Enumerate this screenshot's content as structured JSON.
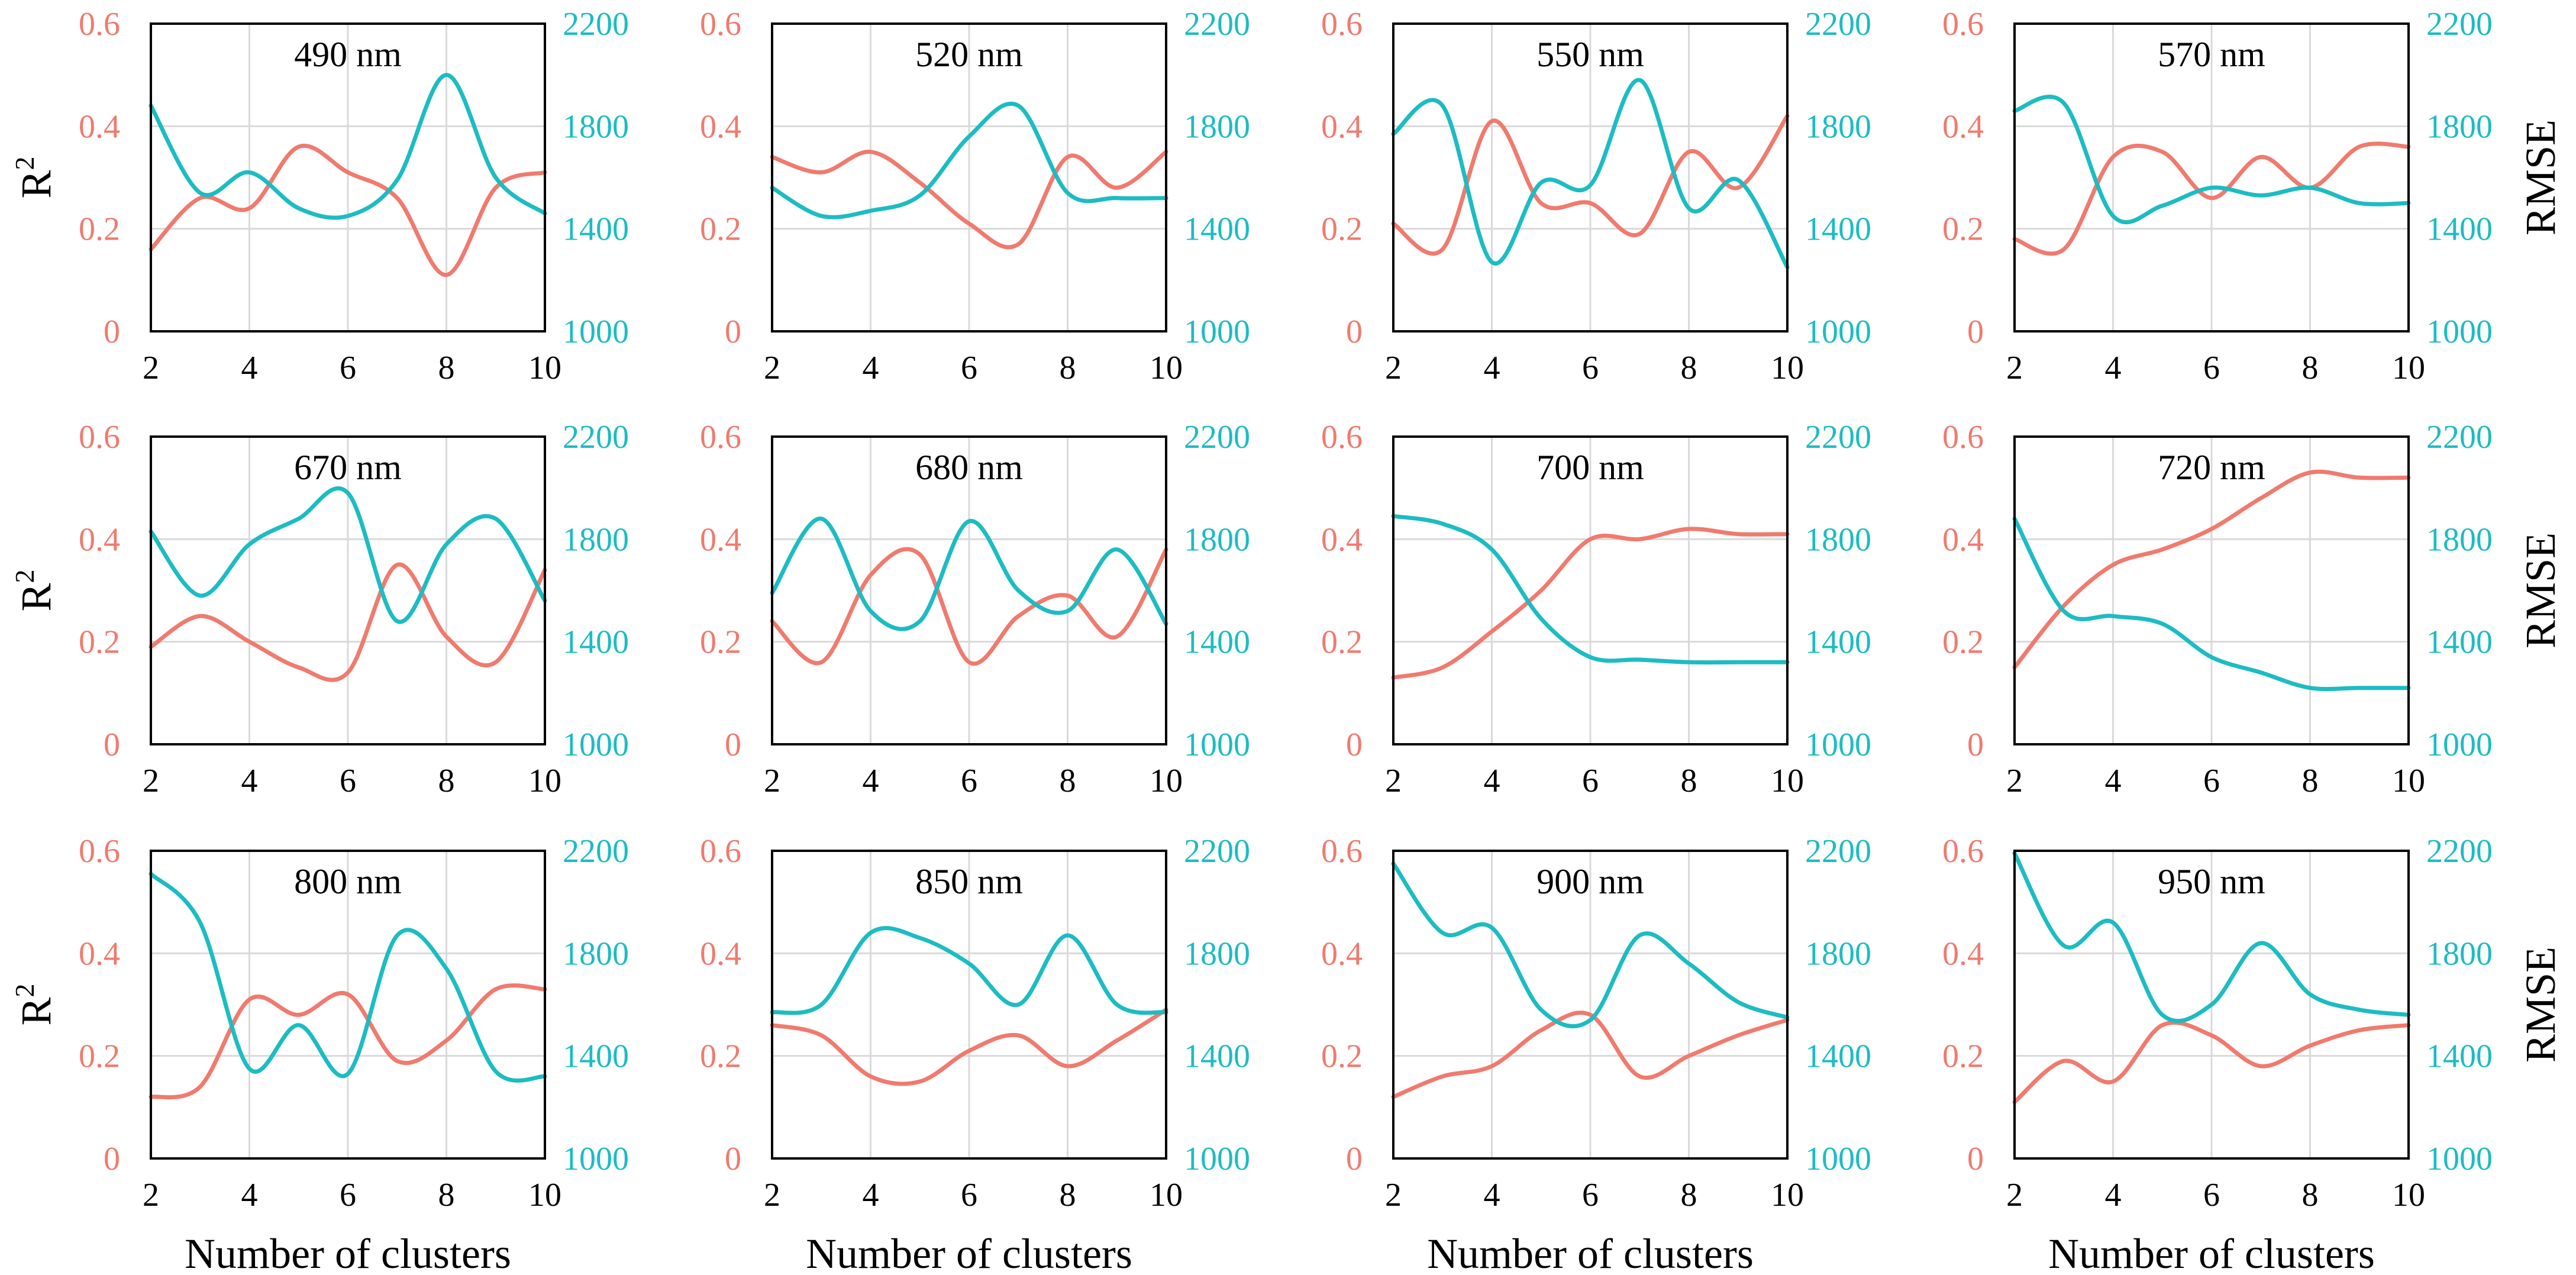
{
  "figure": {
    "colors": {
      "r2": "#f07a6e",
      "rmse": "#1cbcc2",
      "grid": "#d9d9d9",
      "frame": "#000000"
    },
    "left_axis_label": "R",
    "left_axis_label_sup": "2",
    "right_axis_label": "RMSE",
    "x_axis_label": "Number of clusters"
  },
  "chart_data": [
    {
      "type": "line",
      "title": "490 nm",
      "x": [
        2,
        3,
        4,
        5,
        6,
        7,
        8,
        9,
        10
      ],
      "xlim": [
        2,
        10
      ],
      "ylim_left": [
        0,
        0.6
      ],
      "ylim_right": [
        1000,
        2200
      ],
      "grid": true,
      "series": [
        {
          "axis": "left",
          "color": "#f07a6e",
          "values": [
            0.16,
            0.26,
            0.24,
            0.36,
            0.31,
            0.26,
            0.11,
            0.28,
            0.31
          ]
        },
        {
          "axis": "right",
          "color": "#1cbcc2",
          "values": [
            1880,
            1540,
            1620,
            1480,
            1450,
            1590,
            2000,
            1600,
            1460
          ]
        }
      ]
    },
    {
      "type": "line",
      "title": "520 nm",
      "x": [
        2,
        3,
        4,
        5,
        6,
        7,
        8,
        9,
        10
      ],
      "xlim": [
        2,
        10
      ],
      "ylim_left": [
        0,
        0.6
      ],
      "ylim_right": [
        1000,
        2200
      ],
      "grid": true,
      "series": [
        {
          "axis": "left",
          "color": "#f07a6e",
          "values": [
            0.34,
            0.31,
            0.35,
            0.29,
            0.21,
            0.17,
            0.34,
            0.28,
            0.35
          ]
        },
        {
          "axis": "right",
          "color": "#1cbcc2",
          "values": [
            1560,
            1450,
            1470,
            1530,
            1760,
            1880,
            1540,
            1520,
            1520
          ]
        }
      ]
    },
    {
      "type": "line",
      "title": "550 nm",
      "x": [
        2,
        3,
        4,
        5,
        6,
        7,
        8,
        9,
        10
      ],
      "xlim": [
        2,
        10
      ],
      "ylim_left": [
        0,
        0.6
      ],
      "ylim_right": [
        1000,
        2200
      ],
      "grid": true,
      "series": [
        {
          "axis": "left",
          "color": "#f07a6e",
          "values": [
            0.21,
            0.16,
            0.41,
            0.25,
            0.25,
            0.19,
            0.35,
            0.28,
            0.42
          ]
        },
        {
          "axis": "right",
          "color": "#1cbcc2",
          "values": [
            1770,
            1880,
            1270,
            1580,
            1570,
            1980,
            1480,
            1590,
            1250
          ]
        }
      ]
    },
    {
      "type": "line",
      "title": "570 nm",
      "x": [
        2,
        3,
        4,
        5,
        6,
        7,
        8,
        9,
        10
      ],
      "xlim": [
        2,
        10
      ],
      "ylim_left": [
        0,
        0.6
      ],
      "ylim_right": [
        1000,
        2200
      ],
      "grid": true,
      "series": [
        {
          "axis": "left",
          "color": "#f07a6e",
          "values": [
            0.18,
            0.16,
            0.34,
            0.35,
            0.26,
            0.34,
            0.28,
            0.36,
            0.36
          ]
        },
        {
          "axis": "right",
          "color": "#1cbcc2",
          "values": [
            1860,
            1890,
            1450,
            1490,
            1560,
            1530,
            1560,
            1500,
            1500
          ]
        }
      ]
    },
    {
      "type": "line",
      "title": "670 nm",
      "x": [
        2,
        3,
        4,
        5,
        6,
        7,
        8,
        9,
        10
      ],
      "xlim": [
        2,
        10
      ],
      "ylim_left": [
        0,
        0.6
      ],
      "ylim_right": [
        1000,
        2200
      ],
      "grid": true,
      "series": [
        {
          "axis": "left",
          "color": "#f07a6e",
          "values": [
            0.19,
            0.25,
            0.2,
            0.15,
            0.14,
            0.35,
            0.21,
            0.16,
            0.34
          ]
        },
        {
          "axis": "right",
          "color": "#1cbcc2",
          "values": [
            1830,
            1580,
            1780,
            1880,
            1980,
            1480,
            1780,
            1880,
            1560
          ]
        }
      ]
    },
    {
      "type": "line",
      "title": "680 nm",
      "x": [
        2,
        3,
        4,
        5,
        6,
        7,
        8,
        9,
        10
      ],
      "xlim": [
        2,
        10
      ],
      "ylim_left": [
        0,
        0.6
      ],
      "ylim_right": [
        1000,
        2200
      ],
      "grid": true,
      "series": [
        {
          "axis": "left",
          "color": "#f07a6e",
          "values": [
            0.24,
            0.16,
            0.33,
            0.37,
            0.16,
            0.25,
            0.29,
            0.21,
            0.38
          ]
        },
        {
          "axis": "right",
          "color": "#1cbcc2",
          "values": [
            1590,
            1880,
            1520,
            1480,
            1870,
            1600,
            1520,
            1760,
            1470
          ]
        }
      ]
    },
    {
      "type": "line",
      "title": "700 nm",
      "x": [
        2,
        3,
        4,
        5,
        6,
        7,
        8,
        9,
        10
      ],
      "xlim": [
        2,
        10
      ],
      "ylim_left": [
        0,
        0.6
      ],
      "ylim_right": [
        1000,
        2200
      ],
      "grid": true,
      "series": [
        {
          "axis": "left",
          "color": "#f07a6e",
          "values": [
            0.13,
            0.15,
            0.22,
            0.3,
            0.4,
            0.4,
            0.42,
            0.41,
            0.41
          ]
        },
        {
          "axis": "right",
          "color": "#1cbcc2",
          "values": [
            1890,
            1860,
            1760,
            1490,
            1340,
            1330,
            1320,
            1320,
            1320
          ]
        }
      ]
    },
    {
      "type": "line",
      "title": "720 nm",
      "x": [
        2,
        3,
        4,
        5,
        6,
        7,
        8,
        9,
        10
      ],
      "xlim": [
        2,
        10
      ],
      "ylim_left": [
        0,
        0.6
      ],
      "ylim_right": [
        1000,
        2200
      ],
      "grid": true,
      "series": [
        {
          "axis": "left",
          "color": "#f07a6e",
          "values": [
            0.15,
            0.27,
            0.35,
            0.38,
            0.42,
            0.48,
            0.53,
            0.52,
            0.52
          ]
        },
        {
          "axis": "right",
          "color": "#1cbcc2",
          "values": [
            1880,
            1520,
            1500,
            1470,
            1340,
            1280,
            1220,
            1220,
            1220
          ]
        }
      ]
    },
    {
      "type": "line",
      "title": "800 nm",
      "x": [
        2,
        3,
        4,
        5,
        6,
        7,
        8,
        9,
        10
      ],
      "xlim": [
        2,
        10
      ],
      "ylim_left": [
        0,
        0.6
      ],
      "ylim_right": [
        1000,
        2200
      ],
      "grid": true,
      "series": [
        {
          "axis": "left",
          "color": "#f07a6e",
          "values": [
            0.12,
            0.14,
            0.31,
            0.28,
            0.32,
            0.19,
            0.23,
            0.33,
            0.33
          ]
        },
        {
          "axis": "right",
          "color": "#1cbcc2",
          "values": [
            2110,
            1920,
            1350,
            1520,
            1330,
            1870,
            1740,
            1340,
            1320
          ]
        }
      ]
    },
    {
      "type": "line",
      "title": "850 nm",
      "x": [
        2,
        3,
        4,
        5,
        6,
        7,
        8,
        9,
        10
      ],
      "xlim": [
        2,
        10
      ],
      "ylim_left": [
        0,
        0.6
      ],
      "ylim_right": [
        1000,
        2200
      ],
      "grid": true,
      "series": [
        {
          "axis": "left",
          "color": "#f07a6e",
          "values": [
            0.26,
            0.24,
            0.16,
            0.15,
            0.21,
            0.24,
            0.18,
            0.23,
            0.29
          ]
        },
        {
          "axis": "right",
          "color": "#1cbcc2",
          "values": [
            1570,
            1600,
            1880,
            1860,
            1760,
            1600,
            1870,
            1600,
            1570
          ]
        }
      ]
    },
    {
      "type": "line",
      "title": "900 nm",
      "x": [
        2,
        3,
        4,
        5,
        6,
        7,
        8,
        9,
        10
      ],
      "xlim": [
        2,
        10
      ],
      "ylim_left": [
        0,
        0.6
      ],
      "ylim_right": [
        1000,
        2200
      ],
      "grid": true,
      "series": [
        {
          "axis": "left",
          "color": "#f07a6e",
          "values": [
            0.12,
            0.16,
            0.18,
            0.25,
            0.28,
            0.16,
            0.2,
            0.24,
            0.27
          ]
        },
        {
          "axis": "right",
          "color": "#1cbcc2",
          "values": [
            2150,
            1880,
            1900,
            1580,
            1540,
            1870,
            1760,
            1610,
            1550
          ]
        }
      ]
    },
    {
      "type": "line",
      "title": "950 nm",
      "x": [
        2,
        3,
        4,
        5,
        6,
        7,
        8,
        9,
        10
      ],
      "xlim": [
        2,
        10
      ],
      "ylim_left": [
        0,
        0.6
      ],
      "ylim_right": [
        1000,
        2200
      ],
      "grid": true,
      "series": [
        {
          "axis": "left",
          "color": "#f07a6e",
          "values": [
            0.11,
            0.19,
            0.15,
            0.26,
            0.24,
            0.18,
            0.22,
            0.25,
            0.26
          ]
        },
        {
          "axis": "right",
          "color": "#1cbcc2",
          "values": [
            2190,
            1830,
            1920,
            1560,
            1600,
            1840,
            1640,
            1580,
            1560
          ]
        }
      ]
    }
  ]
}
